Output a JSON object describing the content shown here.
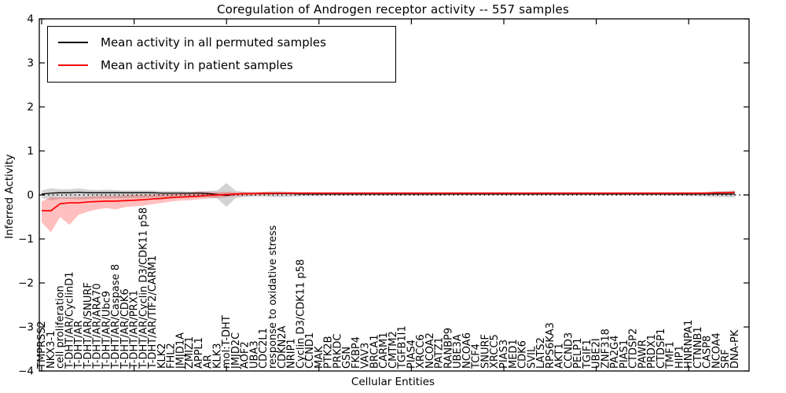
{
  "chart_data": {
    "type": "line",
    "title": "Coregulation of Androgen receptor activity -- 557 samples",
    "xlabel": "Cellular Entities",
    "ylabel": "Inferred Activity",
    "ylim": [
      -4,
      4
    ],
    "yticks": [
      4,
      3,
      2,
      1,
      0,
      -1,
      -2,
      -3,
      -4
    ],
    "x_major_tick_indices": [
      0,
      10,
      20,
      30,
      40,
      50,
      60,
      70
    ],
    "grid": false,
    "legend_position": "upper left",
    "zero_line": {
      "style": "dotted",
      "color": "#000000",
      "y": 0
    },
    "categories": [
      "TMPRSS2",
      "NKX3-1",
      "cell proliferation",
      "T-DHT/AR/CyclinD1",
      "T-DHT/AR",
      "T-DHT/AR/SNURF",
      "T-DHT/AR/ARA70",
      "T-DHT/AR/Ubc9",
      "T-DHT/AR/Caspase 8",
      "T-DHT/AR/CDK6",
      "T-DHT/AR/PRX1",
      "T-DHT/AR/Cyclin D3/CDK11 p58",
      "T-DHT/AR/TIF2/CARM1",
      "KLK2",
      "FHL2",
      "JMJD1A",
      "ZMIZ1",
      "APPL1",
      "AR",
      "KLK3",
      "mol:T-DHT",
      "JMJD2C",
      "AOF2",
      "UBA3",
      "CDC2L1",
      "response to oxidative stress",
      "CDKN2A",
      "NRIP1",
      "Cyclin D3/CDK11 p58",
      "CCND1",
      "MAK",
      "PTK2B",
      "PRKDC",
      "GSN",
      "FKBP4",
      "VAV3",
      "BRCA1",
      "CARM1",
      "CMTM2",
      "TGFB1I1",
      "PIAS4",
      "XRCC6",
      "NCOA2",
      "PATZ1",
      "RANBP9",
      "UBE3A",
      "NCOA6",
      "TCF4",
      "SNURF",
      "XRCC5",
      "PIAS3",
      "MED1",
      "CDK6",
      "SVIL",
      "LATS2",
      "RPS6KA3",
      "AKT1",
      "CCND3",
      "PELP1",
      "TGIF1",
      "UBE2I",
      "ZNF318",
      "PA2G4",
      "PIAS1",
      "CTDSP2",
      "PAWR",
      "PRDX1",
      "CTDSP1",
      "TMF1",
      "HIP1",
      "HNRNPA1",
      "CTNNB1",
      "CASP8",
      "NCOA4",
      "SRF",
      "DNA-PK"
    ],
    "series": [
      {
        "name": "Mean activity in all permuted samples",
        "color": "#000000",
        "band_color": "rgba(128,128,128,0.35)",
        "values": [
          0.02,
          0.04,
          0.05,
          0.05,
          0.06,
          0.05,
          0.05,
          0.05,
          0.05,
          0.05,
          0.05,
          0.05,
          0.05,
          0.04,
          0.04,
          0.04,
          0.04,
          0.04,
          0.03,
          0.01,
          -0.01,
          0.02,
          0.03,
          0.03,
          0.03,
          0.03,
          0.03,
          0.03,
          0.02,
          0.02,
          0.02,
          0.02,
          0.02,
          0.02,
          0.02,
          0.02,
          0.02,
          0.02,
          0.02,
          0.02,
          0.02,
          0.02,
          0.02,
          0.02,
          0.02,
          0.02,
          0.02,
          0.02,
          0.02,
          0.02,
          0.02,
          0.02,
          0.02,
          0.02,
          0.02,
          0.02,
          0.02,
          0.02,
          0.02,
          0.02,
          0.02,
          0.02,
          0.02,
          0.02,
          0.02,
          0.02,
          0.02,
          0.02,
          0.02,
          0.02,
          0.02,
          0.02,
          0.02,
          0.02,
          0.02,
          0.02
        ],
        "band_upper": [
          0.1,
          0.15,
          0.13,
          0.13,
          0.15,
          0.12,
          0.11,
          0.12,
          0.11,
          0.1,
          0.1,
          0.1,
          0.1,
          0.09,
          0.09,
          0.09,
          0.08,
          0.08,
          0.09,
          0.1,
          0.27,
          0.09,
          0.07,
          0.07,
          0.07,
          0.08,
          0.08,
          0.07,
          0.06,
          0.06,
          0.05,
          0.05,
          0.05,
          0.05,
          0.05,
          0.04,
          0.04,
          0.04,
          0.04,
          0.04,
          0.04,
          0.04,
          0.04,
          0.04,
          0.04,
          0.04,
          0.04,
          0.04,
          0.03,
          0.03,
          0.03,
          0.03,
          0.03,
          0.03,
          0.03,
          0.03,
          0.03,
          0.03,
          0.03,
          0.03,
          0.03,
          0.03,
          0.03,
          0.03,
          0.03,
          0.03,
          0.03,
          0.03,
          0.04,
          0.04,
          0.05,
          0.06,
          0.07,
          0.08,
          0.09,
          0.1
        ],
        "band_lower": [
          -0.07,
          -0.12,
          -0.09,
          -0.09,
          -0.1,
          -0.09,
          -0.08,
          -0.08,
          -0.08,
          -0.07,
          -0.07,
          -0.07,
          -0.06,
          -0.06,
          -0.06,
          -0.05,
          -0.05,
          -0.05,
          -0.06,
          -0.08,
          -0.27,
          -0.07,
          -0.05,
          -0.04,
          -0.04,
          -0.05,
          -0.05,
          -0.04,
          -0.03,
          -0.03,
          -0.03,
          -0.02,
          -0.02,
          -0.02,
          -0.02,
          -0.02,
          -0.02,
          -0.02,
          -0.02,
          -0.02,
          -0.02,
          -0.02,
          -0.02,
          -0.02,
          -0.01,
          -0.01,
          -0.01,
          -0.01,
          -0.01,
          -0.01,
          -0.01,
          -0.01,
          -0.01,
          -0.01,
          -0.01,
          -0.01,
          -0.01,
          -0.01,
          -0.01,
          -0.01,
          -0.01,
          -0.01,
          -0.01,
          -0.01,
          -0.01,
          -0.01,
          -0.01,
          -0.01,
          -0.02,
          -0.02,
          -0.03,
          -0.03,
          -0.04,
          -0.05,
          -0.05,
          -0.06
        ]
      },
      {
        "name": "Mean activity in patient samples",
        "color": "#ff0000",
        "band_color": "rgba(255,0,0,0.25)",
        "values": [
          -0.36,
          -0.36,
          -0.2,
          -0.18,
          -0.18,
          -0.16,
          -0.15,
          -0.14,
          -0.14,
          -0.13,
          -0.12,
          -0.11,
          -0.09,
          -0.08,
          -0.06,
          -0.05,
          -0.04,
          -0.03,
          -0.01,
          0.0,
          0.01,
          0.02,
          0.03,
          0.03,
          0.04,
          0.04,
          0.04,
          0.04,
          0.04,
          0.04,
          0.04,
          0.04,
          0.04,
          0.04,
          0.04,
          0.04,
          0.04,
          0.04,
          0.04,
          0.04,
          0.04,
          0.04,
          0.04,
          0.04,
          0.04,
          0.04,
          0.04,
          0.04,
          0.04,
          0.04,
          0.04,
          0.04,
          0.04,
          0.04,
          0.04,
          0.04,
          0.04,
          0.04,
          0.04,
          0.04,
          0.04,
          0.04,
          0.04,
          0.04,
          0.04,
          0.04,
          0.04,
          0.04,
          0.04,
          0.04,
          0.04,
          0.04,
          0.04,
          0.05,
          0.05,
          0.06
        ],
        "band_upper": [
          -0.15,
          -0.05,
          -0.06,
          -0.05,
          -0.05,
          -0.04,
          -0.03,
          -0.02,
          -0.02,
          -0.01,
          0.0,
          0.0,
          0.01,
          0.02,
          0.02,
          0.03,
          0.05,
          0.08,
          0.07,
          0.06,
          0.07,
          0.06,
          0.06,
          0.06,
          0.06,
          0.06,
          0.06,
          0.06,
          0.06,
          0.06,
          0.06,
          0.06,
          0.06,
          0.06,
          0.06,
          0.06,
          0.06,
          0.06,
          0.06,
          0.06,
          0.06,
          0.06,
          0.06,
          0.06,
          0.06,
          0.06,
          0.06,
          0.06,
          0.06,
          0.06,
          0.06,
          0.06,
          0.06,
          0.06,
          0.06,
          0.06,
          0.06,
          0.06,
          0.06,
          0.06,
          0.06,
          0.06,
          0.06,
          0.06,
          0.06,
          0.06,
          0.06,
          0.06,
          0.06,
          0.06,
          0.06,
          0.06,
          0.06,
          0.07,
          0.07,
          0.08
        ],
        "band_lower": [
          -0.62,
          -0.85,
          -0.5,
          -0.68,
          -0.45,
          -0.38,
          -0.33,
          -0.3,
          -0.33,
          -0.28,
          -0.26,
          -0.24,
          -0.21,
          -0.18,
          -0.15,
          -0.13,
          -0.12,
          -0.1,
          -0.08,
          -0.07,
          -0.05,
          -0.03,
          -0.02,
          -0.01,
          0.0,
          0.01,
          0.02,
          0.02,
          0.02,
          0.02,
          0.02,
          0.02,
          0.02,
          0.02,
          0.02,
          0.02,
          0.02,
          0.02,
          0.02,
          0.02,
          0.02,
          0.02,
          0.02,
          0.02,
          0.02,
          0.02,
          0.02,
          0.02,
          0.02,
          0.02,
          0.02,
          0.02,
          0.02,
          0.02,
          0.02,
          0.02,
          0.02,
          0.02,
          0.02,
          0.02,
          0.02,
          0.02,
          0.02,
          0.02,
          0.02,
          0.02,
          0.02,
          0.02,
          0.02,
          0.02,
          0.02,
          0.02,
          0.02,
          0.03,
          0.03,
          0.04
        ]
      }
    ]
  }
}
